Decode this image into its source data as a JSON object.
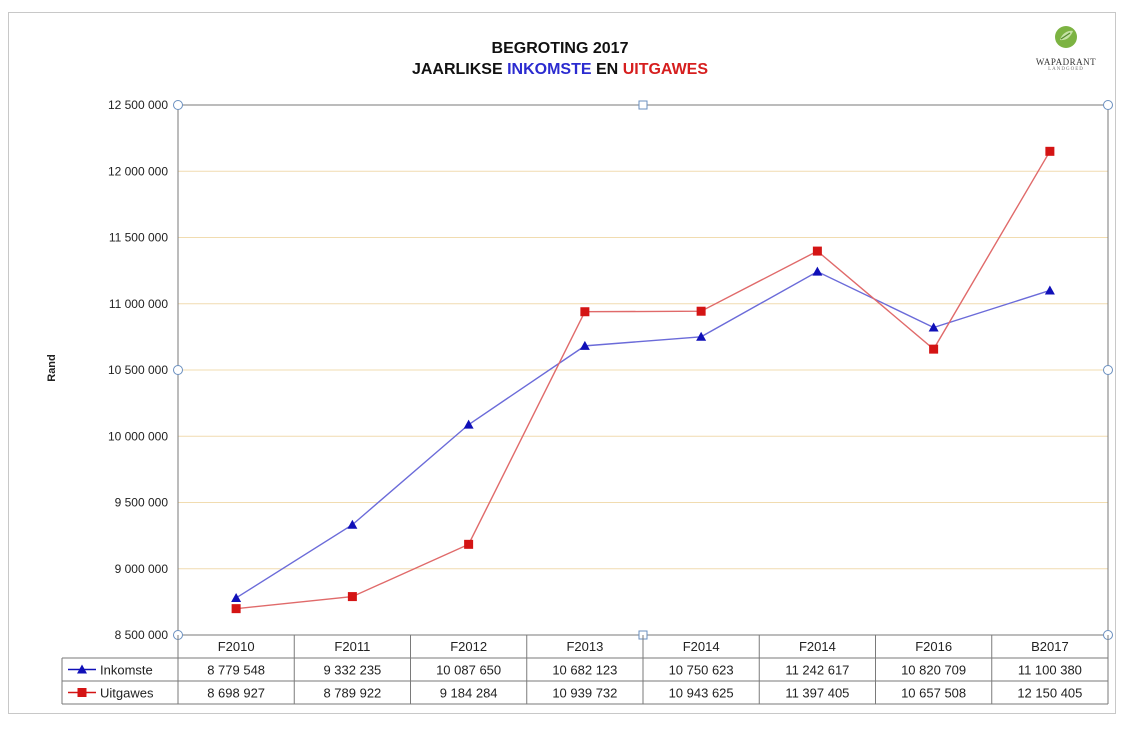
{
  "title": {
    "line1": "BEGROTING 2017",
    "line2_prefix": "JAARLIKSE",
    "line2_word1": "INKOMSTE",
    "line2_mid": "EN",
    "line2_word2": "UITGAWES"
  },
  "logo": {
    "text": "WAPADRANT",
    "subtext": "LANDGOED"
  },
  "colors": {
    "inkomste": "#1010b8",
    "uitgawes": "#d41414",
    "gridline": "#f1dcb0"
  },
  "chart_data": {
    "type": "line",
    "ylabel": "Rand",
    "ylim": [
      8500000,
      12500000
    ],
    "yticks": [
      "8 500 000",
      "9 000 000",
      "9 500 000",
      "10 000 000",
      "10 500 000",
      "11 000 000",
      "11 500 000",
      "12 000 000",
      "12 500 000"
    ],
    "categories": [
      "F2010",
      "F2011",
      "F2012",
      "F2013",
      "F2014",
      "F2014",
      "F2016",
      "B2017"
    ],
    "legend_placement": "data-table",
    "grid": true,
    "series": [
      {
        "name": "Inkomste",
        "marker": "triangle",
        "values": [
          8779548,
          9332235,
          10087650,
          10682123,
          10750623,
          11242617,
          10820709,
          11100380
        ],
        "labels": [
          "8 779 548",
          "9 332 235",
          "10 087 650",
          "10 682 123",
          "10 750 623",
          "11 242 617",
          "10 820 709",
          "11 100 380"
        ]
      },
      {
        "name": "Uitgawes",
        "marker": "square",
        "values": [
          8698927,
          8789922,
          9184284,
          10939732,
          10943625,
          11397405,
          10657508,
          12150405
        ],
        "labels": [
          "8 698 927",
          "8 789 922",
          "9 184 284",
          "10 939 732",
          "10 943 625",
          "11 397 405",
          "10 657 508",
          "12 150 405"
        ]
      }
    ]
  }
}
